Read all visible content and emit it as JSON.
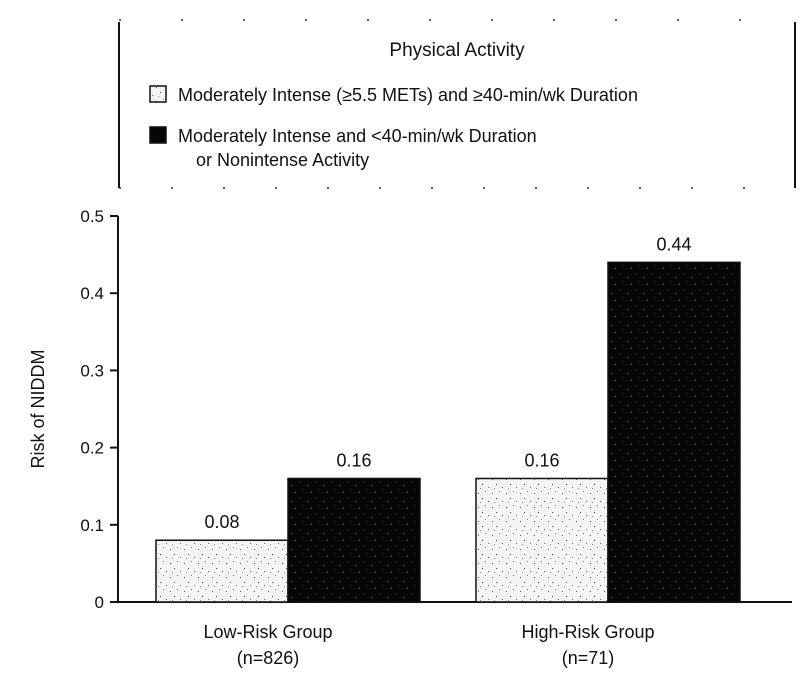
{
  "chart_data": {
    "type": "bar",
    "title": "",
    "xlabel": "",
    "ylabel": "Risk of NIDDM",
    "ylim": [
      0,
      0.5
    ],
    "yticks": [
      "0",
      "0.1",
      "0.2",
      "0.3",
      "0.4",
      "0.5"
    ],
    "categories": [
      {
        "line1": "Low-Risk Group",
        "line2": "(n=826)"
      },
      {
        "line1": "High-Risk Group",
        "line2": "(n=71)"
      }
    ],
    "legend": {
      "title": "Physical Activity",
      "placement": "top"
    },
    "series": [
      {
        "name": "Moderately Intense (≥5.5 METs) and ≥40-min/wk Duration",
        "legend_lines": [
          "Moderately Intense (≥5.5 METs) and ≥40-min/wk Duration"
        ],
        "values": [
          0.08,
          0.16
        ],
        "labels": [
          "0.08",
          "0.16"
        ],
        "color": "#f4f4f4"
      },
      {
        "name": "Moderately Intense and <40-min/wk Duration or Nonintense Activity",
        "legend_lines": [
          "Moderately Intense and <40-min/wk Duration",
          "or Nonintense Activity"
        ],
        "values": [
          0.16,
          0.44
        ],
        "labels": [
          "0.16",
          "0.44"
        ],
        "color": "#050505"
      }
    ]
  }
}
